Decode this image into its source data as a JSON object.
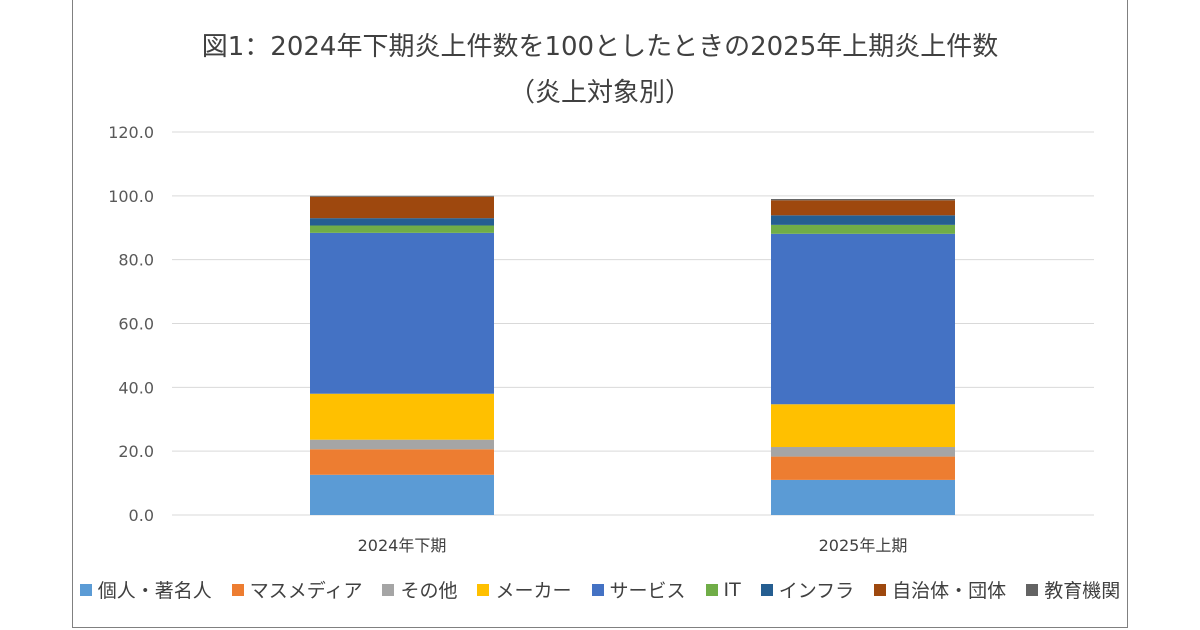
{
  "chart_data": {
    "type": "bar",
    "stacked": true,
    "title": "図1：2024年下期炎上件数を100としたときの2025年上期炎上件数",
    "subtitle": "（炎上対象別）",
    "categories": [
      "2024年下期",
      "2025年上期"
    ],
    "ylim": [
      0,
      120
    ],
    "yticks": [
      "0.0",
      "20.0",
      "40.0",
      "60.0",
      "80.0",
      "100.0",
      "120.0"
    ],
    "grid": true,
    "legend_position": "bottom",
    "series": [
      {
        "name": "個人・著名人",
        "color": "#5B9BD5",
        "values": [
          12.6,
          11.0
        ]
      },
      {
        "name": "マスメディア",
        "color": "#ED7D31",
        "values": [
          8.0,
          7.3
        ]
      },
      {
        "name": "その他",
        "color": "#A5A5A5",
        "values": [
          3.0,
          3.0
        ]
      },
      {
        "name": "メーカー",
        "color": "#FFC000",
        "values": [
          14.4,
          13.4
        ]
      },
      {
        "name": "サービス",
        "color": "#4472C4",
        "values": [
          50.4,
          53.4
        ]
      },
      {
        "name": "IT",
        "color": "#70AD47",
        "values": [
          2.3,
          2.8
        ]
      },
      {
        "name": "インフラ",
        "color": "#255E91",
        "values": [
          2.3,
          3.0
        ]
      },
      {
        "name": "自治体・団体",
        "color": "#9E480E",
        "values": [
          6.7,
          4.7
        ]
      },
      {
        "name": "教育機関",
        "color": "#636363",
        "values": [
          0.3,
          0.4
        ]
      }
    ]
  }
}
